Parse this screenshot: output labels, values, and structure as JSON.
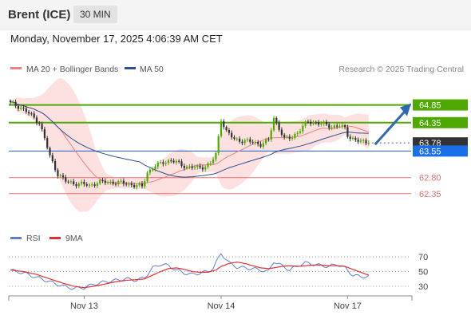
{
  "header": {
    "title": "Brent (ICE)",
    "timeframe": "30 MIN",
    "timestamp": "Monday, November 17, 2025 4:06:39 AM CET",
    "copyright": "Research © 2025 Trading Central"
  },
  "colors": {
    "resistance": "#4fa800",
    "support": "#e07070",
    "pivot": "#1a5fc9",
    "arrow": "#2f67b0",
    "candle": "#333333",
    "candle_up": "#4fa800",
    "band_fill": "#fde0e0",
    "ma20": "#f08080",
    "ma50": "#2c4f8f",
    "rsi": "#5b7fd0",
    "rsi_ma": "#e03030"
  },
  "chart_data": [
    {
      "type": "line",
      "name": "price",
      "legend": [
        {
          "label": "MA 20 + Bollinger Bands",
          "color": "#f08080"
        },
        {
          "label": "MA 50",
          "color": "#2c4f8f"
        }
      ],
      "y_range": [
        61.4,
        65.2
      ],
      "x_ticks": [
        "Nov 13",
        "Nov 14",
        "Nov 17"
      ],
      "x_tick_index": [
        28,
        80,
        128
      ],
      "bar_count": 151,
      "current_price": 63.78,
      "levels": [
        {
          "value": 64.85,
          "label": "64.85",
          "kind": "resistance"
        },
        {
          "value": 64.35,
          "label": "64.35",
          "kind": "resistance"
        },
        {
          "value": 63.78,
          "label": "63.78",
          "kind": "current"
        },
        {
          "value": 63.55,
          "label": "63.55",
          "kind": "pivot"
        },
        {
          "value": 62.8,
          "label": "62.80",
          "kind": "support"
        },
        {
          "value": 62.35,
          "label": "62.35",
          "kind": "support"
        }
      ],
      "anchors": [
        [
          0,
          64.9
        ],
        [
          4,
          64.78
        ],
        [
          8,
          64.55
        ],
        [
          11,
          64.35
        ],
        [
          13,
          63.9
        ],
        [
          15,
          63.4
        ],
        [
          18,
          62.9
        ],
        [
          21,
          62.7
        ],
        [
          24,
          62.64
        ],
        [
          27,
          62.62
        ],
        [
          30,
          62.58
        ],
        [
          33,
          62.66
        ],
        [
          36,
          62.68
        ],
        [
          40,
          62.66
        ],
        [
          44,
          62.64
        ],
        [
          47,
          62.58
        ],
        [
          50,
          62.55
        ],
        [
          52,
          62.95
        ],
        [
          55,
          63.12
        ],
        [
          58,
          63.24
        ],
        [
          61,
          63.28
        ],
        [
          64,
          63.2
        ],
        [
          67,
          63.1
        ],
        [
          71,
          63.08
        ],
        [
          74,
          63.12
        ],
        [
          76,
          63.2
        ],
        [
          78,
          63.45
        ],
        [
          80,
          64.45
        ],
        [
          82,
          64.1
        ],
        [
          85,
          63.88
        ],
        [
          88,
          63.84
        ],
        [
          92,
          63.8
        ],
        [
          95,
          63.74
        ],
        [
          98,
          63.85
        ],
        [
          100,
          64.48
        ],
        [
          102,
          64.2
        ],
        [
          104,
          63.88
        ],
        [
          107,
          63.95
        ],
        [
          110,
          64.15
        ],
        [
          113,
          64.38
        ],
        [
          116,
          64.35
        ],
        [
          119,
          64.3
        ],
        [
          122,
          64.24
        ],
        [
          125,
          64.26
        ],
        [
          127,
          64.18
        ],
        [
          128,
          64.0
        ],
        [
          131,
          63.85
        ],
        [
          134,
          63.8
        ],
        [
          136,
          63.78
        ]
      ],
      "annotation": "projected move from 63.78 toward 64.85"
    },
    {
      "type": "line",
      "name": "oscillator",
      "legend": [
        {
          "label": "RSI",
          "color": "#5b7fd0"
        },
        {
          "label": "9MA",
          "color": "#e03030"
        }
      ],
      "y_range": [
        20,
        80
      ],
      "y_ticks": [
        70,
        50,
        30
      ],
      "rsi_anchors": [
        [
          0,
          52
        ],
        [
          5,
          48
        ],
        [
          10,
          42
        ],
        [
          15,
          36
        ],
        [
          20,
          30
        ],
        [
          24,
          27
        ],
        [
          28,
          28
        ],
        [
          32,
          33
        ],
        [
          36,
          36
        ],
        [
          40,
          38
        ],
        [
          44,
          40
        ],
        [
          48,
          38
        ],
        [
          51,
          42
        ],
        [
          54,
          55
        ],
        [
          57,
          60
        ],
        [
          60,
          58
        ],
        [
          63,
          52
        ],
        [
          66,
          48
        ],
        [
          69,
          46
        ],
        [
          72,
          48
        ],
        [
          75,
          50
        ],
        [
          77,
          55
        ],
        [
          80,
          75
        ],
        [
          83,
          62
        ],
        [
          86,
          56
        ],
        [
          89,
          55
        ],
        [
          92,
          54
        ],
        [
          95,
          52
        ],
        [
          98,
          50
        ],
        [
          100,
          64
        ],
        [
          103,
          58
        ],
        [
          106,
          52
        ],
        [
          109,
          58
        ],
        [
          112,
          62
        ],
        [
          115,
          60
        ],
        [
          118,
          58
        ],
        [
          121,
          57
        ],
        [
          124,
          60
        ],
        [
          127,
          55
        ],
        [
          130,
          45
        ],
        [
          133,
          43
        ],
        [
          136,
          43
        ]
      ],
      "ma_anchors": [
        [
          0,
          52
        ],
        [
          5,
          50
        ],
        [
          10,
          46
        ],
        [
          15,
          40
        ],
        [
          20,
          34
        ],
        [
          24,
          30
        ],
        [
          28,
          28
        ],
        [
          32,
          30
        ],
        [
          36,
          33
        ],
        [
          40,
          36
        ],
        [
          44,
          38
        ],
        [
          48,
          39
        ],
        [
          51,
          40
        ],
        [
          54,
          45
        ],
        [
          57,
          50
        ],
        [
          60,
          54
        ],
        [
          63,
          55
        ],
        [
          66,
          53
        ],
        [
          69,
          50
        ],
        [
          72,
          49
        ],
        [
          75,
          49
        ],
        [
          78,
          52
        ],
        [
          80,
          57
        ],
        [
          83,
          61
        ],
        [
          86,
          63
        ],
        [
          89,
          61
        ],
        [
          92,
          58
        ],
        [
          95,
          55
        ],
        [
          98,
          54
        ],
        [
          100,
          55
        ],
        [
          103,
          57
        ],
        [
          106,
          58
        ],
        [
          109,
          57
        ],
        [
          112,
          58
        ],
        [
          115,
          59
        ],
        [
          118,
          59
        ],
        [
          121,
          58
        ],
        [
          124,
          58
        ],
        [
          127,
          57
        ],
        [
          130,
          53
        ],
        [
          133,
          49
        ],
        [
          136,
          45
        ]
      ]
    }
  ]
}
